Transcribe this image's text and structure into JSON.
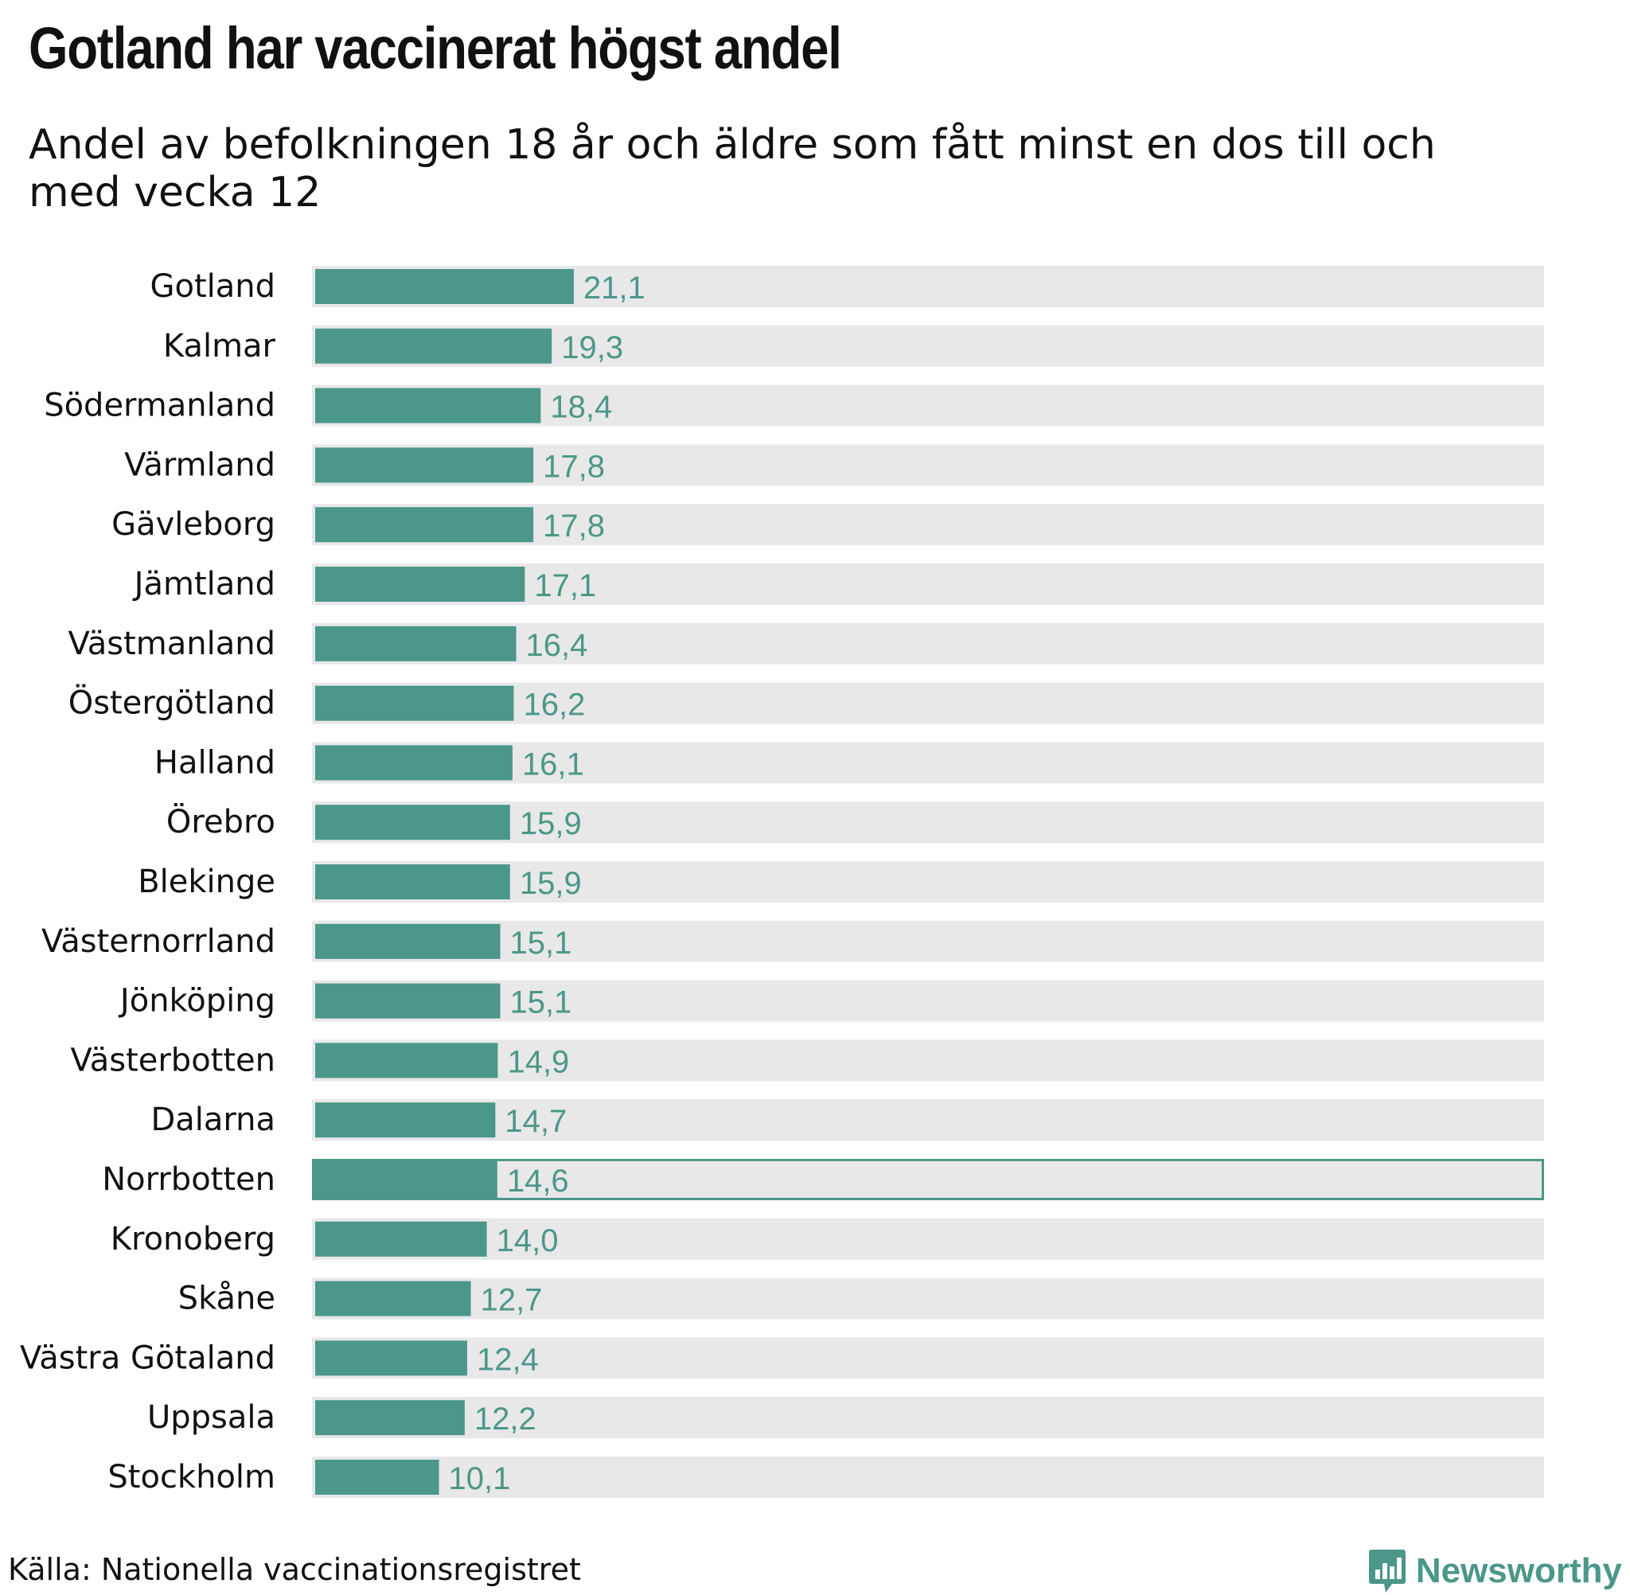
{
  "header": {
    "title": "Gotland har vaccinerat högst andel",
    "subtitle": "Andel av befolkningen 18 år och äldre som fått minst en dos till och med vecka 12"
  },
  "footer": {
    "source": "Källa: Nationella vaccinationsregistret",
    "brand": "Newsworthy",
    "brand_icon": "bar-chart-speech-bubble-icon"
  },
  "colors": {
    "bar": "#4b978a",
    "track": "#e8e8e8",
    "value_label": "#4b978a",
    "highlight_outline": "#4b978a",
    "brand": "#4b978a"
  },
  "chart_data": {
    "type": "bar",
    "orientation": "horizontal",
    "title": "Gotland har vaccinerat högst andel",
    "subtitle": "Andel av befolkningen 18 år och äldre som fått minst en dos till och med vecka 12",
    "categories": [
      "Gotland",
      "Kalmar",
      "Södermanland",
      "Värmland",
      "Gävleborg",
      "Jämtland",
      "Västmanland",
      "Östergötland",
      "Halland",
      "Örebro",
      "Blekinge",
      "Västernorrland",
      "Jönköping",
      "Västerbotten",
      "Dalarna",
      "Norrbotten",
      "Kronoberg",
      "Skåne",
      "Västra Götaland",
      "Uppsala",
      "Stockholm"
    ],
    "values": [
      21.1,
      19.3,
      18.4,
      17.8,
      17.8,
      17.1,
      16.4,
      16.2,
      16.1,
      15.9,
      15.9,
      15.1,
      15.1,
      14.9,
      14.7,
      14.6,
      14.0,
      12.7,
      12.4,
      12.2,
      10.1
    ],
    "value_labels": [
      "21,1",
      "19,3",
      "18,4",
      "17,8",
      "17,8",
      "17,1",
      "16,4",
      "16,2",
      "16,1",
      "15,9",
      "15,9",
      "15,1",
      "15,1",
      "14,9",
      "14,7",
      "14,6",
      "14,0",
      "12,7",
      "12,4",
      "12,2",
      "10,1"
    ],
    "xlim": [
      0,
      100
    ],
    "highlighted": "Norrbotten",
    "grid": false,
    "legend": "none",
    "xlabel": "",
    "ylabel": ""
  }
}
